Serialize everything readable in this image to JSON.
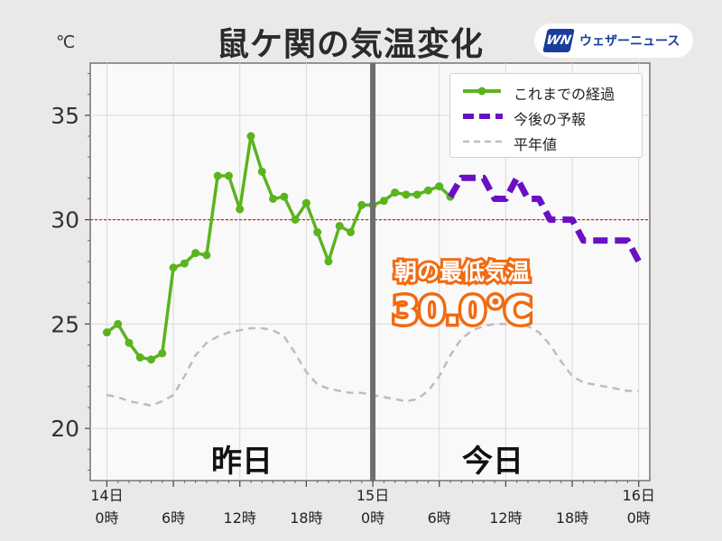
{
  "header": {
    "title": "鼠ケ関の気温変化",
    "logo_mark": "WN",
    "logo_text": "ウェザーニュース"
  },
  "chart_data": {
    "type": "line",
    "title": "鼠ケ関の気温変化",
    "ylabel": "℃",
    "ylim": [
      17.5,
      37.5
    ],
    "xlim": [
      -1.5,
      49
    ],
    "grid": true,
    "y_ticks": [
      20,
      25,
      30,
      35
    ],
    "x_ticks": [
      {
        "x": 0,
        "line1": "14日",
        "line2": "0時"
      },
      {
        "x": 6,
        "line1": "",
        "line2": "6時"
      },
      {
        "x": 12,
        "line1": "",
        "line2": "12時"
      },
      {
        "x": 18,
        "line1": "",
        "line2": "18時"
      },
      {
        "x": 24,
        "line1": "15日",
        "line2": "0時"
      },
      {
        "x": 30,
        "line1": "",
        "line2": "6時"
      },
      {
        "x": 36,
        "line1": "",
        "line2": "12時"
      },
      {
        "x": 42,
        "line1": "",
        "line2": "18時"
      },
      {
        "x": 48,
        "line1": "16日",
        "line2": "0時"
      }
    ],
    "now_x": 24,
    "min_ref_line": 30,
    "legend_placement": "top-right",
    "series": [
      {
        "name": "これまでの経過",
        "style": "solid-markers",
        "color": "#5ab41e",
        "x": [
          0,
          1,
          2,
          3,
          4,
          5,
          6,
          7,
          8,
          9,
          10,
          11,
          12,
          13,
          14,
          15,
          16,
          17,
          18,
          19,
          20,
          21,
          22,
          23,
          24,
          25,
          26,
          27,
          28,
          29,
          30,
          31
        ],
        "values": [
          24.6,
          25.0,
          24.1,
          23.4,
          23.3,
          23.6,
          27.7,
          27.9,
          28.4,
          28.3,
          32.1,
          32.1,
          30.5,
          34.0,
          32.3,
          31.0,
          31.1,
          30.0,
          30.8,
          29.4,
          28.0,
          29.7,
          29.4,
          30.7,
          30.7,
          30.9,
          31.3,
          31.2,
          31.2,
          31.4,
          31.6,
          31.1
        ]
      },
      {
        "name": "今後の予報",
        "style": "dashed",
        "color": "#6a0fc4",
        "x": [
          31,
          32,
          33,
          34,
          35,
          36,
          37,
          38,
          39,
          40,
          41,
          42,
          43,
          44,
          45,
          46,
          47,
          48
        ],
        "values": [
          31.1,
          32.0,
          32.0,
          32.0,
          31.0,
          31.0,
          32.0,
          31.0,
          31.0,
          30.0,
          30.0,
          30.0,
          29.0,
          29.0,
          29.0,
          29.0,
          29.0,
          28.0
        ]
      },
      {
        "name": "平年値",
        "style": "dashed-thin",
        "color": "#bdbdbd",
        "x": [
          0,
          1,
          2,
          3,
          4,
          5,
          6,
          7,
          8,
          9,
          10,
          11,
          12,
          13,
          14,
          15,
          16,
          17,
          18,
          19,
          20,
          21,
          22,
          23,
          24,
          25,
          26,
          27,
          28,
          29,
          30,
          31,
          32,
          33,
          34,
          35,
          36,
          37,
          38,
          39,
          40,
          41,
          42,
          43,
          44,
          45,
          46,
          47,
          48
        ],
        "values": [
          21.6,
          21.5,
          21.3,
          21.2,
          21.1,
          21.3,
          21.6,
          22.5,
          23.5,
          24.1,
          24.4,
          24.6,
          24.7,
          24.8,
          24.8,
          24.7,
          24.4,
          23.6,
          22.7,
          22.1,
          21.9,
          21.8,
          21.7,
          21.7,
          21.6,
          21.5,
          21.4,
          21.3,
          21.4,
          21.8,
          22.5,
          23.5,
          24.3,
          24.7,
          24.9,
          25.0,
          25.0,
          25.0,
          24.9,
          24.6,
          24.0,
          23.2,
          22.5,
          22.2,
          22.1,
          22.0,
          21.9,
          21.8,
          21.8
        ]
      }
    ]
  },
  "labels": {
    "yesterday": "昨日",
    "today": "今日",
    "min_label": "朝の最低気温",
    "min_value": "30.0℃"
  }
}
